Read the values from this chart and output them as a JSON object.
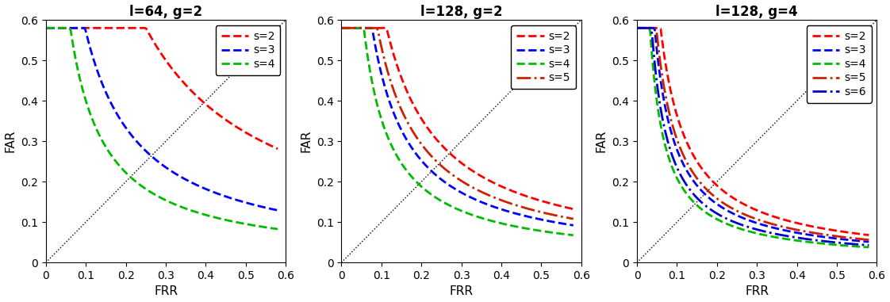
{
  "subplots": [
    {
      "title": "l=64, g=2",
      "legend_entries": [
        {
          "label": "s=2",
          "color": "#ff0000",
          "linestyle": "--"
        },
        {
          "label": "s=3",
          "color": "#0000ff",
          "linestyle": "--"
        },
        {
          "label": "s=4",
          "color": "#00bb00",
          "linestyle": "--"
        }
      ],
      "curves": [
        {
          "s": 2,
          "color": "#ff0000",
          "linestyle": "--",
          "alpha": 0.18,
          "steepness": 0.06
        },
        {
          "s": 3,
          "color": "#0000ff",
          "linestyle": "--",
          "alpha": 0.08,
          "steepness": 0.04
        },
        {
          "s": 4,
          "color": "#00bb00",
          "linestyle": "--",
          "alpha": 0.05,
          "steepness": 0.025
        }
      ]
    },
    {
      "title": "l=128, g=2",
      "legend_entries": [
        {
          "label": "s=2",
          "color": "#ff0000",
          "linestyle": "--"
        },
        {
          "label": "s=3",
          "color": "#0000ff",
          "linestyle": "--"
        },
        {
          "label": "s=4",
          "color": "#00bb00",
          "linestyle": "--"
        },
        {
          "label": "s=5",
          "color": "#cc2200",
          "linestyle": "-."
        }
      ],
      "curves": [
        {
          "s": 2,
          "color": "#ff0000",
          "linestyle": "--",
          "alpha": 0.08,
          "steepness": 0.025
        },
        {
          "s": 3,
          "color": "#0000ff",
          "linestyle": "--",
          "alpha": 0.055,
          "steepness": 0.018
        },
        {
          "s": 4,
          "color": "#00bb00",
          "linestyle": "--",
          "alpha": 0.04,
          "steepness": 0.013
        },
        {
          "s": 5,
          "color": "#cc2200",
          "linestyle": "-.",
          "alpha": 0.065,
          "steepness": 0.022
        }
      ]
    },
    {
      "title": "l=128, g=4",
      "legend_entries": [
        {
          "label": "s=2",
          "color": "#ff0000",
          "linestyle": "--"
        },
        {
          "label": "s=3",
          "color": "#0000ff",
          "linestyle": "--"
        },
        {
          "label": "s=4",
          "color": "#00bb00",
          "linestyle": "--"
        },
        {
          "label": "s=5",
          "color": "#cc2200",
          "linestyle": "-."
        },
        {
          "label": "s=6",
          "color": "#0000cc",
          "linestyle": "-."
        }
      ],
      "curves": [
        {
          "s": 2,
          "color": "#ff0000",
          "linestyle": "--",
          "alpha": 0.04,
          "steepness": 0.01
        },
        {
          "s": 3,
          "color": "#0000ff",
          "linestyle": "--",
          "alpha": 0.03,
          "steepness": 0.0075
        },
        {
          "s": 4,
          "color": "#00bb00",
          "linestyle": "--",
          "alpha": 0.022,
          "steepness": 0.0055
        },
        {
          "s": 5,
          "color": "#cc2200",
          "linestyle": "-.",
          "alpha": 0.033,
          "steepness": 0.0085
        },
        {
          "s": 6,
          "color": "#0000cc",
          "linestyle": "-.",
          "alpha": 0.025,
          "steepness": 0.0065
        }
      ]
    }
  ],
  "xlim": [
    0,
    0.6
  ],
  "ylim": [
    0,
    0.6
  ],
  "xticks": [
    0,
    0.1,
    0.2,
    0.3,
    0.4,
    0.5,
    0.6
  ],
  "yticks": [
    0,
    0.1,
    0.2,
    0.3,
    0.4,
    0.5,
    0.6
  ],
  "xlabel": "FRR",
  "ylabel": "FAR",
  "linewidth": 2.0,
  "title_fontsize": 12,
  "label_fontsize": 11,
  "tick_fontsize": 10,
  "legend_fontsize": 10
}
